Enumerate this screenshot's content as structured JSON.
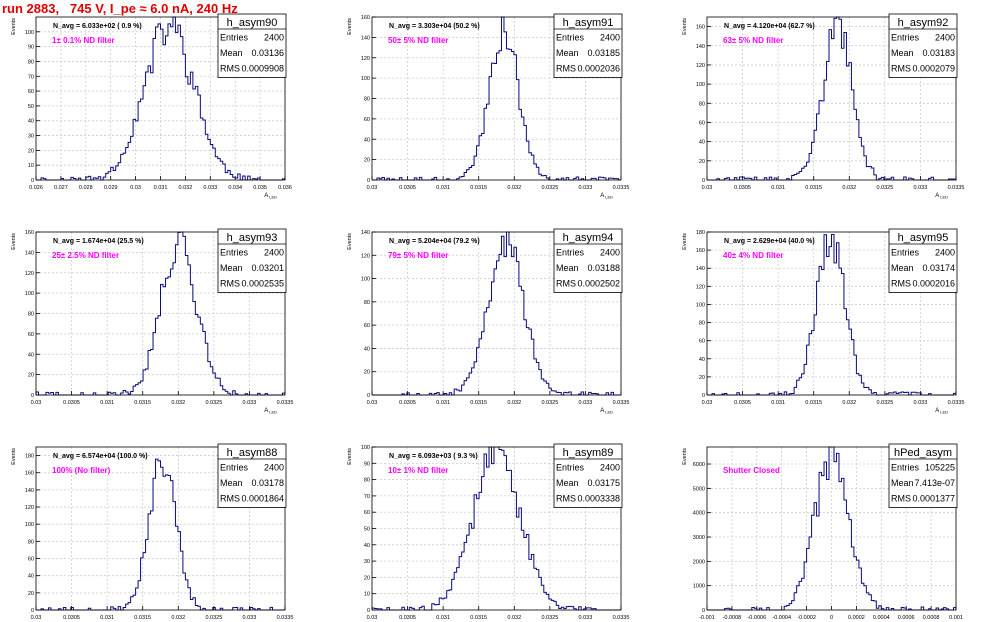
{
  "page": {
    "title": "run 2883,   745 V, I_pe ≈ 6.0 nA, 240 Hz"
  },
  "colors": {
    "line": "#0a0a80",
    "annotation": "#ff00ff",
    "title_text": "#e00000",
    "grid": "#cccccc",
    "frame": "#000000"
  },
  "chart_data": [
    {
      "type": "histogram",
      "name": "h_asym90",
      "ylabel": "Events",
      "xlabel": "A_LED",
      "xlim": [
        0.026,
        0.036
      ],
      "ylim": [
        0,
        110
      ],
      "xticks": [
        "0.026",
        "0.027",
        "0.028",
        "0.029",
        "0.03",
        "0.031",
        "0.032",
        "0.033",
        "0.034",
        "0.035",
        "0.036"
      ],
      "yticks": [
        "0",
        "10",
        "20",
        "30",
        "40",
        "50",
        "60",
        "70",
        "80",
        "90",
        "100"
      ],
      "stats": [
        [
          "Entries",
          "2400"
        ],
        [
          "Mean",
          "0.03136"
        ],
        [
          "RMS",
          "0.0009908"
        ]
      ],
      "navg": "N_avg = 6.033e+02 ( 0.9 %)",
      "annotation": "1± 0.1% ND filter",
      "mean": 0.03136,
      "rms": 0.0009908,
      "nbins": 100,
      "peak": 104,
      "seed": 11
    },
    {
      "type": "histogram",
      "name": "h_asym91",
      "ylabel": "Events",
      "xlabel": "A_LED",
      "xlim": [
        0.03,
        0.0335
      ],
      "ylim": [
        0,
        160
      ],
      "xticks": [
        "0.03",
        "0.0305",
        "0.031",
        "0.0315",
        "0.032",
        "0.0325",
        "0.033",
        "0.0335"
      ],
      "yticks": [
        "0",
        "20",
        "40",
        "60",
        "80",
        "100",
        "120",
        "140",
        "160"
      ],
      "stats": [
        [
          "Entries",
          "2400"
        ],
        [
          "Mean",
          "0.03185"
        ],
        [
          "RMS",
          "0.0002036"
        ]
      ],
      "navg": "N_avg = 3.303e+04 (50.2 %)",
      "annotation": "50± 5% ND filter",
      "mean": 0.03185,
      "rms": 0.0002036,
      "nbins": 100,
      "peak": 150,
      "seed": 23
    },
    {
      "type": "histogram",
      "name": "h_asym92",
      "ylabel": "Events",
      "xlabel": "A_LED",
      "xlim": [
        0.03,
        0.0335
      ],
      "ylim": [
        0,
        170
      ],
      "xticks": [
        "0.03",
        "0.0305",
        "0.031",
        "0.0315",
        "0.032",
        "0.0325",
        "0.033",
        "0.0335"
      ],
      "yticks": [
        "0",
        "20",
        "40",
        "60",
        "80",
        "100",
        "120",
        "140",
        "160"
      ],
      "stats": [
        [
          "Entries",
          "2400"
        ],
        [
          "Mean",
          "0.03183"
        ],
        [
          "RMS",
          "0.0002079"
        ]
      ],
      "navg": "N_avg = 4.120e+04 (62.7 %)",
      "annotation": "63± 5% ND filter",
      "mean": 0.03183,
      "rms": 0.0002079,
      "nbins": 100,
      "peak": 156,
      "seed": 37
    },
    {
      "type": "histogram",
      "name": "h_asym93",
      "ylabel": "Events",
      "xlabel": "A_LED",
      "xlim": [
        0.03,
        0.0335
      ],
      "ylim": [
        0,
        160
      ],
      "xticks": [
        "0.03",
        "0.0305",
        "0.031",
        "0.0315",
        "0.032",
        "0.0325",
        "0.033",
        "0.0335"
      ],
      "yticks": [
        "0",
        "20",
        "40",
        "60",
        "80",
        "100",
        "120",
        "140",
        "160"
      ],
      "stats": [
        [
          "Entries",
          "2400"
        ],
        [
          "Mean",
          "0.03201"
        ],
        [
          "RMS",
          "0.0002535"
        ]
      ],
      "navg": "N_avg = 1.674e+04 (25.5 %)",
      "annotation": "25± 2.5% ND filter",
      "mean": 0.03201,
      "rms": 0.0002535,
      "nbins": 100,
      "peak": 150,
      "seed": 41
    },
    {
      "type": "histogram",
      "name": "h_asym94",
      "ylabel": "Events",
      "xlabel": "A_LED",
      "xlim": [
        0.03,
        0.0335
      ],
      "ylim": [
        0,
        140
      ],
      "xticks": [
        "0.03",
        "0.0305",
        "0.031",
        "0.0315",
        "0.032",
        "0.0325",
        "0.033",
        "0.0335"
      ],
      "yticks": [
        "0",
        "20",
        "40",
        "60",
        "80",
        "100",
        "120",
        "140"
      ],
      "stats": [
        [
          "Entries",
          "2400"
        ],
        [
          "Mean",
          "0.03188"
        ],
        [
          "RMS",
          "0.0002502"
        ]
      ],
      "navg": "N_avg = 5.204e+04 (79.2 %)",
      "annotation": "79± 5% ND filter",
      "mean": 0.03188,
      "rms": 0.0002502,
      "nbins": 100,
      "peak": 132,
      "seed": 53
    },
    {
      "type": "histogram",
      "name": "h_asym95",
      "ylabel": "Events",
      "xlabel": "A_LED",
      "xlim": [
        0.03,
        0.0335
      ],
      "ylim": [
        0,
        180
      ],
      "xticks": [
        "0.03",
        "0.0305",
        "0.031",
        "0.0315",
        "0.032",
        "0.0325",
        "0.033",
        "0.0335"
      ],
      "yticks": [
        "0",
        "20",
        "40",
        "60",
        "80",
        "100",
        "120",
        "140",
        "160",
        "180"
      ],
      "stats": [
        [
          "Entries",
          "2400"
        ],
        [
          "Mean",
          "0.03174"
        ],
        [
          "RMS",
          "0.0002016"
        ]
      ],
      "navg": "N_avg = 2.629e+04 (40.0 %)",
      "annotation": "40± 4% ND filter",
      "mean": 0.03174,
      "rms": 0.0002016,
      "nbins": 100,
      "peak": 170,
      "seed": 67
    },
    {
      "type": "histogram",
      "name": "h_asym88",
      "ylabel": "Events",
      "xlabel": "A_LED",
      "xlim": [
        0.03,
        0.0335
      ],
      "ylim": [
        0,
        190
      ],
      "xticks": [
        "0.03",
        "0.0305",
        "0.031",
        "0.0315",
        "0.032",
        "0.0325",
        "0.033",
        "0.0335"
      ],
      "yticks": [
        "0",
        "20",
        "40",
        "60",
        "80",
        "100",
        "120",
        "140",
        "160",
        "180"
      ],
      "stats": [
        [
          "Entries",
          "2400"
        ],
        [
          "Mean",
          "0.03178"
        ],
        [
          "RMS",
          "0.0001864"
        ]
      ],
      "navg": "N_avg = 6.574e+04 (100.0 %)",
      "annotation": "100% (No filter)",
      "mean": 0.03178,
      "rms": 0.0001864,
      "nbins": 100,
      "peak": 180,
      "seed": 79
    },
    {
      "type": "histogram",
      "name": "h_asym89",
      "ylabel": "Events",
      "xlabel": "A_LED",
      "xlim": [
        0.03,
        0.0335
      ],
      "ylim": [
        0,
        100
      ],
      "xticks": [
        "0.03",
        "0.0305",
        "0.031",
        "0.0315",
        "0.032",
        "0.0325",
        "0.033",
        "0.0335"
      ],
      "yticks": [
        "0",
        "10",
        "20",
        "30",
        "40",
        "50",
        "60",
        "70",
        "80",
        "90",
        "100"
      ],
      "stats": [
        [
          "Entries",
          "2400"
        ],
        [
          "Mean",
          "0.03175"
        ],
        [
          "RMS",
          "0.0003338"
        ]
      ],
      "navg": "N_avg = 6.093e+03 ( 9.3 %)",
      "annotation": "10± 1% ND filter",
      "mean": 0.03175,
      "rms": 0.0003338,
      "nbins": 100,
      "peak": 95,
      "seed": 83
    },
    {
      "type": "histogram",
      "name": "hPed_asym",
      "ylabel": "Events",
      "xlabel": "",
      "xlim": [
        -0.001,
        0.001
      ],
      "ylim": [
        0,
        6700
      ],
      "xticks": [
        "-0.001",
        "-0.0008",
        "-0.0006",
        "-0.0004",
        "-0.0002",
        "0",
        "0.0002",
        "0.0004",
        "0.0006",
        "0.0008",
        "0.001"
      ],
      "yticks": [
        "0",
        "1000",
        "2000",
        "3000",
        "4000",
        "5000",
        "6000"
      ],
      "stats": [
        [
          "Entries",
          "105225"
        ],
        [
          "Mean",
          "7.413e-07"
        ],
        [
          "RMS",
          "0.0001377"
        ]
      ],
      "navg": "",
      "annotation": "Shutter Closed",
      "mean": 7.4e-07,
      "rms": 0.0001377,
      "nbins": 100,
      "peak": 6300,
      "seed": 97
    }
  ]
}
